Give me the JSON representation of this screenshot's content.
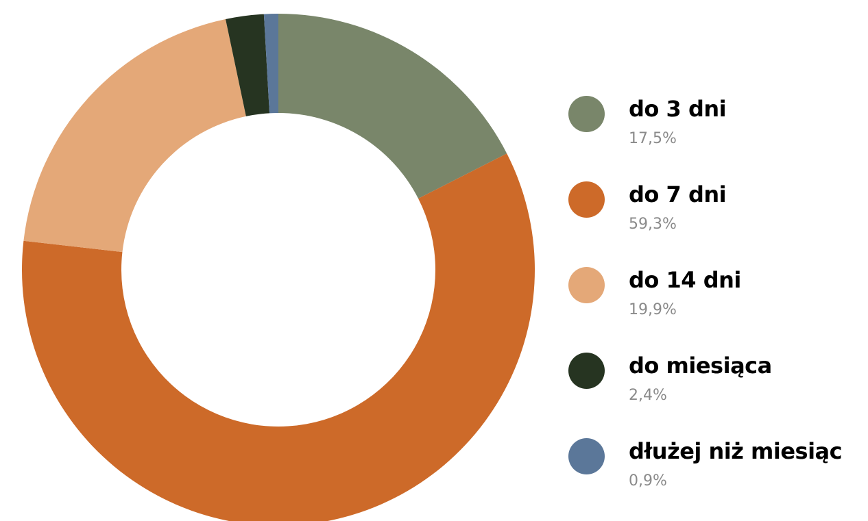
{
  "chart_data": {
    "type": "pie",
    "variant": "donut",
    "categories": [
      "do 3 dni",
      "do 7 dni",
      "do 14 dni",
      "do miesiąca",
      "dłużej niż miesiąc"
    ],
    "values": [
      17.5,
      59.3,
      19.9,
      2.4,
      0.9
    ],
    "value_labels": [
      "17,5%",
      "59,3%",
      "19,9%",
      "2,4%",
      "0,9%"
    ],
    "unit": "%",
    "colors": [
      "#79866a",
      "#cd6a29",
      "#e4a878",
      "#263421",
      "#5b7799"
    ],
    "legend_placement": "right",
    "title": "",
    "grid": false
  }
}
